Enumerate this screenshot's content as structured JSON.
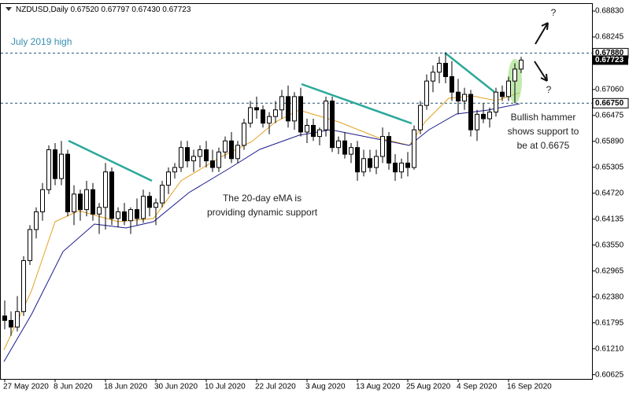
{
  "chart_data": {
    "type": "candlestick",
    "header": {
      "symbol": "NZDUSD,Daily",
      "ohlc": [
        "0.67520",
        "0.67797",
        "0.67430",
        "0.67723"
      ]
    },
    "annotations": [
      "July 2019 high",
      "The 20-day eMA is",
      "providing dynamic support",
      "Bullish hammer",
      "shows support to",
      "be at 0.6675",
      "?",
      "?"
    ],
    "categories": [
      "27 May 2020",
      null,
      null,
      null,
      null,
      null,
      null,
      null,
      "8 Jun 2020",
      null,
      null,
      null,
      null,
      null,
      null,
      null,
      "18 Jun 2020",
      null,
      null,
      null,
      null,
      null,
      null,
      null,
      "30 Jun 2020",
      null,
      null,
      null,
      null,
      null,
      null,
      null,
      "10 Jul 2020",
      null,
      null,
      null,
      null,
      null,
      null,
      null,
      "22 Jul 2020",
      null,
      null,
      null,
      null,
      null,
      null,
      null,
      "3 Aug 2020",
      null,
      null,
      null,
      null,
      null,
      null,
      null,
      "13 Aug 2020",
      null,
      null,
      null,
      null,
      null,
      null,
      null,
      "25 Aug 2020",
      null,
      null,
      null,
      null,
      null,
      null,
      null,
      "4 Sep 2020",
      null,
      null,
      null,
      null,
      null,
      null,
      null,
      "16 Sep 2020",
      null,
      null
    ],
    "ohlc": [
      [
        0.6195,
        0.623,
        0.6165,
        0.6185
      ],
      [
        0.6185,
        0.6205,
        0.615,
        0.617
      ],
      [
        0.617,
        0.624,
        0.616,
        0.6205
      ],
      [
        0.6205,
        0.633,
        0.6195,
        0.632
      ],
      [
        0.632,
        0.64,
        0.631,
        0.639
      ],
      [
        0.639,
        0.644,
        0.637,
        0.643
      ],
      [
        0.643,
        0.6495,
        0.641,
        0.648
      ],
      [
        0.648,
        0.658,
        0.647,
        0.657
      ],
      [
        0.657,
        0.6585,
        0.649,
        0.6505
      ],
      [
        0.6505,
        0.659,
        0.649,
        0.656
      ],
      [
        0.656,
        0.657,
        0.642,
        0.643
      ],
      [
        0.643,
        0.649,
        0.64,
        0.647
      ],
      [
        0.647,
        0.648,
        0.641,
        0.6435
      ],
      [
        0.6435,
        0.65,
        0.642,
        0.648
      ],
      [
        0.648,
        0.6495,
        0.641,
        0.6425
      ],
      [
        0.6425,
        0.645,
        0.638,
        0.644
      ],
      [
        0.644,
        0.654,
        0.639,
        0.652
      ],
      [
        0.652,
        0.653,
        0.64,
        0.6415
      ],
      [
        0.6415,
        0.644,
        0.6395,
        0.643
      ],
      [
        0.643,
        0.645,
        0.64,
        0.641
      ],
      [
        0.641,
        0.644,
        0.638,
        0.6435
      ],
      [
        0.6435,
        0.646,
        0.64,
        0.6415
      ],
      [
        0.6415,
        0.648,
        0.6405,
        0.6465
      ],
      [
        0.6465,
        0.6475,
        0.642,
        0.644
      ],
      [
        0.644,
        0.646,
        0.64,
        0.645
      ],
      [
        0.645,
        0.65,
        0.644,
        0.649
      ],
      [
        0.649,
        0.653,
        0.647,
        0.652
      ],
      [
        0.652,
        0.654,
        0.6505,
        0.653
      ],
      [
        0.653,
        0.659,
        0.652,
        0.6575
      ],
      [
        0.6575,
        0.659,
        0.653,
        0.6545
      ],
      [
        0.6545,
        0.657,
        0.652,
        0.6555
      ],
      [
        0.6555,
        0.658,
        0.653,
        0.657
      ],
      [
        0.657,
        0.659,
        0.653,
        0.6545
      ],
      [
        0.6545,
        0.657,
        0.652,
        0.653
      ],
      [
        0.653,
        0.6575,
        0.652,
        0.6565
      ],
      [
        0.6565,
        0.66,
        0.655,
        0.659
      ],
      [
        0.659,
        0.661,
        0.654,
        0.655
      ],
      [
        0.655,
        0.659,
        0.654,
        0.658
      ],
      [
        0.658,
        0.664,
        0.657,
        0.663
      ],
      [
        0.663,
        0.668,
        0.662,
        0.6665
      ],
      [
        0.6665,
        0.669,
        0.664,
        0.666
      ],
      [
        0.666,
        0.667,
        0.662,
        0.663
      ],
      [
        0.663,
        0.6655,
        0.6605,
        0.6645
      ],
      [
        0.6645,
        0.668,
        0.663,
        0.666
      ],
      [
        0.666,
        0.6705,
        0.664,
        0.669
      ],
      [
        0.669,
        0.6715,
        0.662,
        0.6635
      ],
      [
        0.6635,
        0.67,
        0.6615,
        0.669
      ],
      [
        0.669,
        0.671,
        0.66,
        0.661
      ],
      [
        0.661,
        0.664,
        0.6585,
        0.6625
      ],
      [
        0.6625,
        0.664,
        0.659,
        0.66
      ],
      [
        0.66,
        0.662,
        0.658,
        0.6615
      ],
      [
        0.6615,
        0.669,
        0.66,
        0.668
      ],
      [
        0.668,
        0.669,
        0.6565,
        0.6575
      ],
      [
        0.6575,
        0.66,
        0.656,
        0.659
      ],
      [
        0.659,
        0.661,
        0.655,
        0.656
      ],
      [
        0.656,
        0.6585,
        0.654,
        0.6575
      ],
      [
        0.6575,
        0.659,
        0.65,
        0.652
      ],
      [
        0.652,
        0.657,
        0.651,
        0.655
      ],
      [
        0.655,
        0.657,
        0.652,
        0.653
      ],
      [
        0.653,
        0.657,
        0.6515,
        0.6555
      ],
      [
        0.6555,
        0.662,
        0.654,
        0.66
      ],
      [
        0.66,
        0.661,
        0.6525,
        0.654
      ],
      [
        0.654,
        0.656,
        0.65,
        0.652
      ],
      [
        0.652,
        0.655,
        0.6505,
        0.654
      ],
      [
        0.654,
        0.6565,
        0.651,
        0.653
      ],
      [
        0.653,
        0.6625,
        0.6525,
        0.6615
      ],
      [
        0.6615,
        0.668,
        0.6605,
        0.667
      ],
      [
        0.667,
        0.674,
        0.666,
        0.6725
      ],
      [
        0.6725,
        0.676,
        0.67,
        0.6745
      ],
      [
        0.6745,
        0.678,
        0.672,
        0.6765
      ],
      [
        0.6765,
        0.679,
        0.672,
        0.6735
      ],
      [
        0.6735,
        0.677,
        0.668,
        0.67
      ],
      [
        0.67,
        0.673,
        0.665,
        0.668
      ],
      [
        0.668,
        0.671,
        0.666,
        0.6695
      ],
      [
        0.6695,
        0.6705,
        0.66,
        0.6615
      ],
      [
        0.6615,
        0.666,
        0.659,
        0.665
      ],
      [
        0.665,
        0.6675,
        0.663,
        0.664
      ],
      [
        0.664,
        0.6665,
        0.662,
        0.6655
      ],
      [
        0.6655,
        0.671,
        0.6645,
        0.67
      ],
      [
        0.67,
        0.6715,
        0.668,
        0.669
      ],
      [
        0.669,
        0.6735,
        0.668,
        0.6725
      ],
      [
        0.6725,
        0.6765,
        0.6675,
        0.6752
      ],
      [
        0.6752,
        0.67797,
        0.6743,
        0.67723
      ]
    ],
    "levels": [
      {
        "value": 0.6788,
        "label": "0.67880"
      },
      {
        "value": 0.6675,
        "label": "0.66750"
      }
    ],
    "ylim": [
      0.6053,
      0.6899
    ],
    "yticks": [
      {
        "value": 0.6883,
        "label": "0.68830"
      },
      {
        "value": 0.68245,
        "label": "0.68245"
      },
      {
        "value": 0.6706,
        "label": "0.67060"
      },
      {
        "value": 0.66475,
        "label": "0.66475"
      },
      {
        "value": 0.6589,
        "label": "0.65890"
      },
      {
        "value": 0.65305,
        "label": "0.65305"
      },
      {
        "value": 0.6472,
        "label": "0.64720"
      },
      {
        "value": 0.64135,
        "label": "0.64135"
      },
      {
        "value": 0.6355,
        "label": "0.63550"
      },
      {
        "value": 0.62965,
        "label": "0.62965"
      },
      {
        "value": 0.6238,
        "label": "0.62380"
      },
      {
        "value": 0.61795,
        "label": "0.61795"
      },
      {
        "value": 0.6121,
        "label": "0.61210"
      },
      {
        "value": 0.60625,
        "label": "0.60625"
      }
    ]
  }
}
